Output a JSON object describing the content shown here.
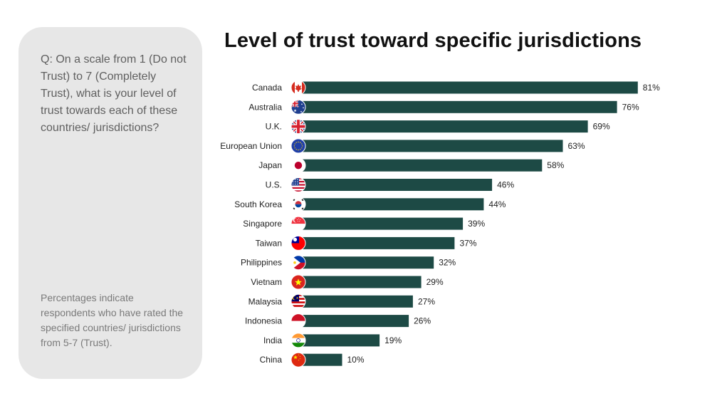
{
  "side_panel": {
    "question": "Q: On a scale from 1 (Do not Trust) to 7 (Completely Trust), what is your level of trust towards each of these countries/ jurisdictions?",
    "note": "Percentages indicate respondents who have rated the specified countries/ jurisdictions from 5-7 (Trust)."
  },
  "colors": {
    "bar": "#1d4a45",
    "panel": "#e7e7e7"
  },
  "chart_data": {
    "type": "bar",
    "orientation": "horizontal",
    "title": "Level of trust toward specific jurisdictions",
    "xlim": [
      0,
      100
    ],
    "value_suffix": "%",
    "grid": false,
    "categories": [
      "Canada",
      "Australia",
      "U.K.",
      "European Union",
      "Japan",
      "U.S.",
      "South Korea",
      "Singapore",
      "Taiwan",
      "Philippines",
      "Vietnam",
      "Malaysia",
      "Indonesia",
      "India",
      "China"
    ],
    "values": [
      81,
      76,
      69,
      63,
      58,
      46,
      44,
      39,
      37,
      32,
      29,
      27,
      26,
      19,
      10
    ],
    "value_labels": [
      "81%",
      "76%",
      "69%",
      "63%",
      "58%",
      "46%",
      "44%",
      "39%",
      "37%",
      "32%",
      "29%",
      "27%",
      "26%",
      "19%",
      "10%"
    ],
    "flag_icons": [
      "canada-flag-icon",
      "australia-flag-icon",
      "uk-flag-icon",
      "eu-flag-icon",
      "japan-flag-icon",
      "us-flag-icon",
      "south-korea-flag-icon",
      "singapore-flag-icon",
      "taiwan-flag-icon",
      "philippines-flag-icon",
      "vietnam-flag-icon",
      "malaysia-flag-icon",
      "indonesia-flag-icon",
      "india-flag-icon",
      "china-flag-icon"
    ]
  }
}
